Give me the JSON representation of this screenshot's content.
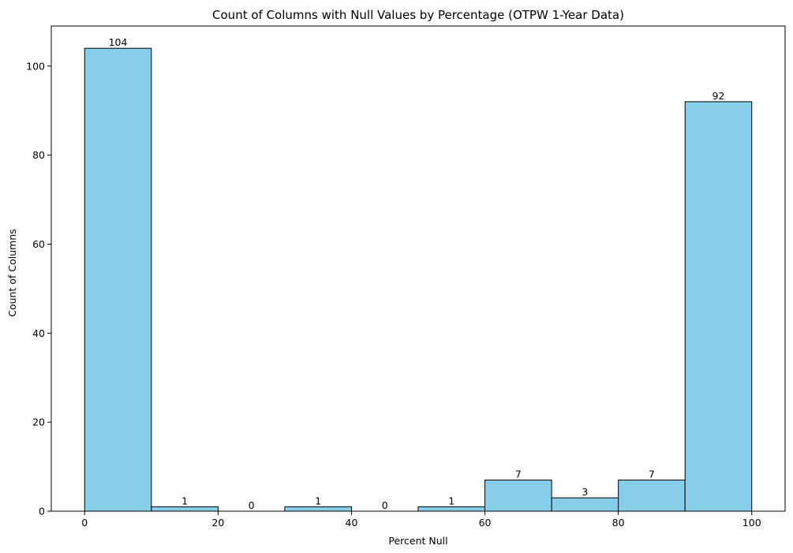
{
  "chart_data": {
    "type": "bar",
    "title": "Count of Columns with Null Values by Percentage (OTPW 1-Year Data)",
    "xlabel": "Percent Null",
    "ylabel": "Count of Columns",
    "bins": [
      {
        "start": 0,
        "end": 10,
        "count": 104
      },
      {
        "start": 10,
        "end": 20,
        "count": 1
      },
      {
        "start": 20,
        "end": 30,
        "count": 0
      },
      {
        "start": 30,
        "end": 40,
        "count": 1
      },
      {
        "start": 40,
        "end": 50,
        "count": 0
      },
      {
        "start": 50,
        "end": 60,
        "count": 1
      },
      {
        "start": 60,
        "end": 70,
        "count": 7
      },
      {
        "start": 70,
        "end": 80,
        "count": 3
      },
      {
        "start": 80,
        "end": 90,
        "count": 7
      },
      {
        "start": 90,
        "end": 100,
        "count": 92
      }
    ],
    "xlim": [
      -5,
      105
    ],
    "ylim": [
      0,
      109
    ],
    "xticks": [
      0,
      20,
      40,
      60,
      80,
      100
    ],
    "yticks": [
      0,
      20,
      40,
      60,
      80,
      100
    ],
    "bar_color": "#87CEEB",
    "edge_color": "#000000",
    "grid": false,
    "legend": "none"
  }
}
